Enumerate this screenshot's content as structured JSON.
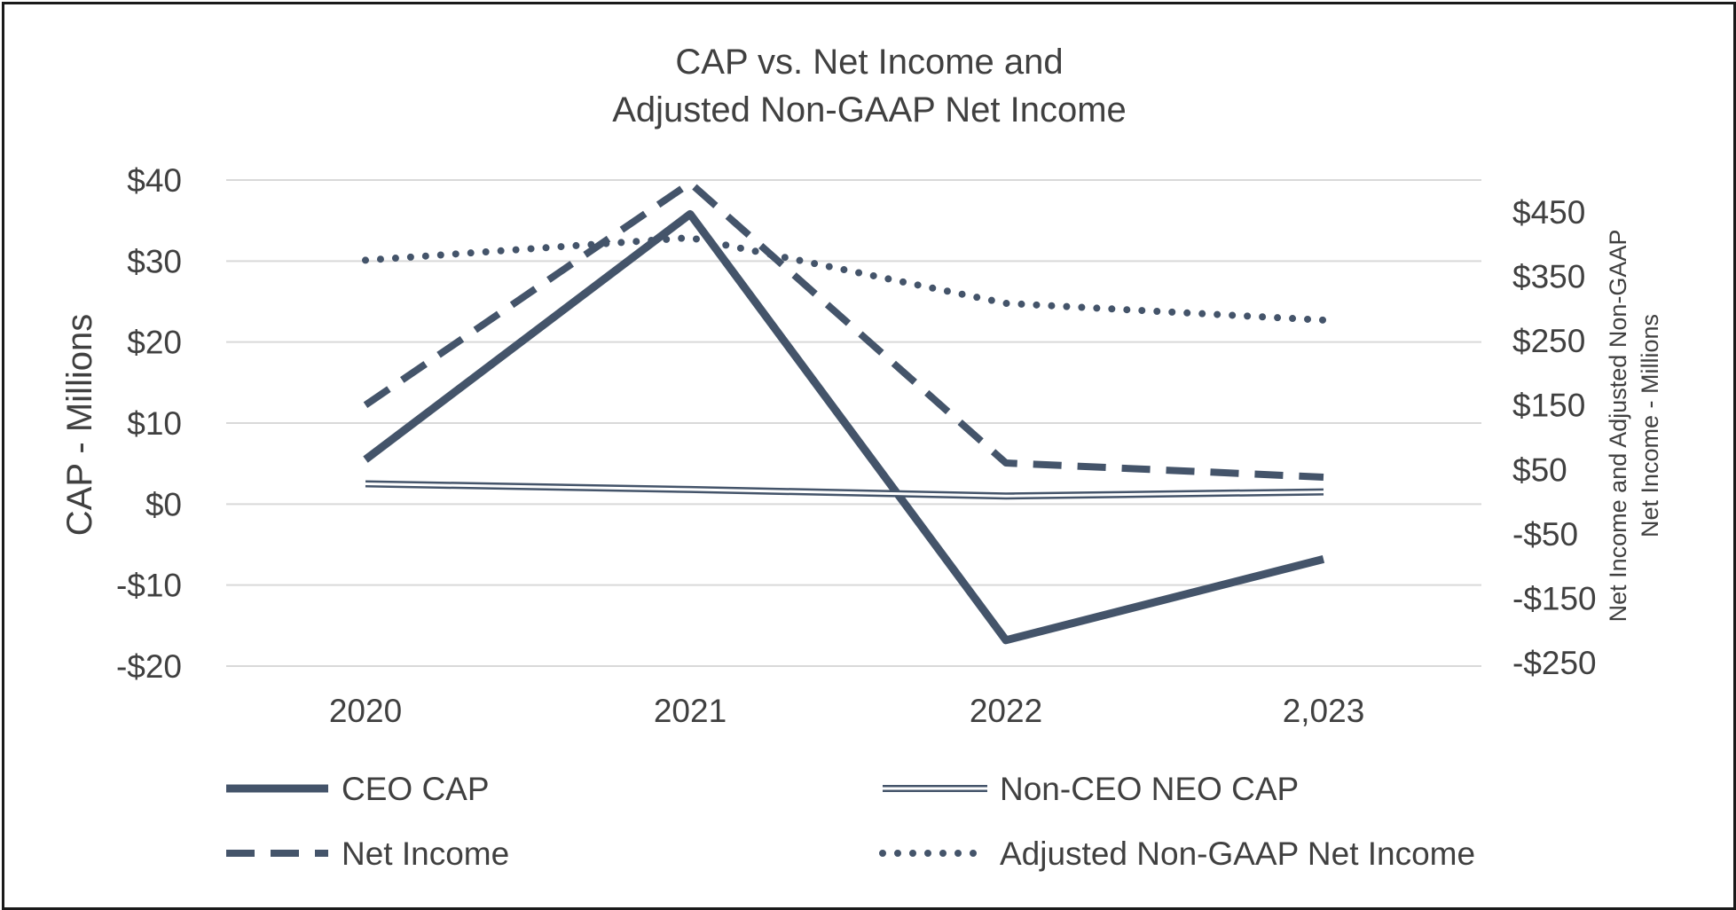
{
  "chart_data": {
    "type": "line",
    "title": [
      "CAP vs. Net Income and",
      "Adjusted Non-GAAP Net Income"
    ],
    "categories": [
      "2020",
      "2021",
      "2022",
      "2,023"
    ],
    "ylabel_left": "CAP - Millions",
    "ylabel_right": [
      "Net Income and Adjusted Non-GAAP",
      "Net Income - Millions"
    ],
    "left_axis": {
      "ylim": [
        -20,
        40
      ],
      "ticks": [
        40,
        30,
        20,
        10,
        0,
        -10,
        -20
      ],
      "tick_labels": [
        "$40",
        "$30",
        "$20",
        "$10",
        "$0",
        "-$10",
        "-$20"
      ]
    },
    "right_axis": {
      "ylim": [
        -280,
        500
      ],
      "ticks": [
        450,
        350,
        250,
        150,
        50,
        -50,
        -150,
        -250
      ],
      "tick_labels": [
        "$450",
        "$350",
        "$250",
        "$150",
        "$50",
        "-$50",
        "-$150",
        "-$250"
      ]
    },
    "grid": true,
    "legend_position": "bottom",
    "series": [
      {
        "name": "CEO CAP",
        "axis": "left",
        "style": "solid",
        "values": [
          5.5,
          35.8,
          -16.8,
          -6.8
        ]
      },
      {
        "name": "Non-CEO NEO CAP",
        "axis": "left",
        "style": "double",
        "values": [
          2.5,
          1.8,
          1.0,
          1.5
        ]
      },
      {
        "name": "Net Income",
        "axis": "right",
        "style": "dashed",
        "values": [
          150,
          495,
          60,
          38
        ]
      },
      {
        "name": "Adjusted Non-GAAP Net Income",
        "axis": "right",
        "style": "dotted",
        "values": [
          375,
          410,
          308,
          282
        ]
      }
    ],
    "colors": {
      "series": "#44546a",
      "grid": "#d9d9d9",
      "text": "#404040"
    }
  }
}
